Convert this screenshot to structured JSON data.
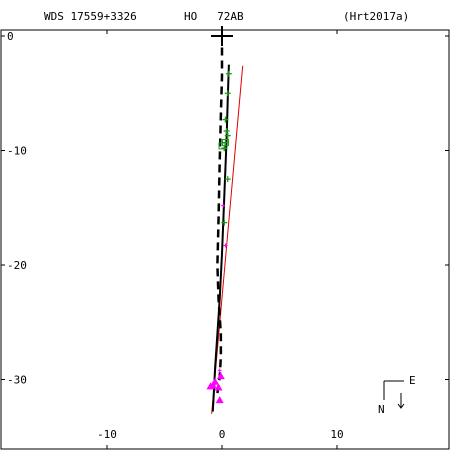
{
  "header": {
    "wds_id": "WDS 17559+3326",
    "discoverer": "HO   72AB",
    "reference": "(Hrt2017a)"
  },
  "compass": {
    "north_label": "N",
    "east_label": "E"
  },
  "chart_data": {
    "type": "scatter",
    "xlim": [
      -19,
      20
    ],
    "ylim": [
      -36,
      1
    ],
    "x_ticks": [
      -10,
      0,
      10
    ],
    "y_ticks": [
      0,
      -10,
      -20,
      -30
    ],
    "x_tick_labels": [
      "-10",
      "0",
      "10"
    ],
    "y_tick_labels": [
      "0",
      "-10",
      "-20",
      "-30"
    ],
    "primary": {
      "x": 0,
      "y": 0
    },
    "green_points": [
      {
        "x": 0.6,
        "y": -3.3
      },
      {
        "x": 0.5,
        "y": -5.0
      },
      {
        "x": 0.3,
        "y": -7.3
      },
      {
        "x": 0.4,
        "y": -8.3
      },
      {
        "x": 0.5,
        "y": -8.7
      },
      {
        "x": 0.3,
        "y": -9.3
      },
      {
        "x": 0.2,
        "y": -9.8
      },
      {
        "x": 0.5,
        "y": -12.5
      },
      {
        "x": 0.2,
        "y": -16.3
      }
    ],
    "green_squares": [
      {
        "x": 0.3,
        "y": -9.3
      },
      {
        "x": 0.0,
        "y": -9.6
      }
    ],
    "magenta_triangles": [
      {
        "x": -0.1,
        "y": -29.7
      },
      {
        "x": -0.6,
        "y": -30.2
      },
      {
        "x": -0.8,
        "y": -30.5
      },
      {
        "x": -0.3,
        "y": -30.7
      },
      {
        "x": -1.0,
        "y": -30.6
      },
      {
        "x": -0.2,
        "y": -31.8
      }
    ],
    "magenta_crosses": [
      {
        "x": 0.1,
        "y": -14.8
      },
      {
        "x": 0.3,
        "y": -18.3
      },
      {
        "x": -0.2,
        "y": -29.2
      }
    ],
    "orbit_solid": [
      {
        "x": 0.6,
        "y": -2.5
      },
      {
        "x": 0.5,
        "y": -5.5
      },
      {
        "x": 0.4,
        "y": -9.0
      },
      {
        "x": 0.2,
        "y": -14.0
      },
      {
        "x": 0.0,
        "y": -19.0
      },
      {
        "x": -0.2,
        "y": -23.0
      },
      {
        "x": -0.4,
        "y": -26.0
      },
      {
        "x": -0.6,
        "y": -29.0
      },
      {
        "x": -0.7,
        "y": -31.0
      },
      {
        "x": -0.8,
        "y": -32.8
      }
    ],
    "orbit_dashed": [
      {
        "x": 0.0,
        "y": -1.0
      },
      {
        "x": 0.0,
        "y": -3.5
      },
      {
        "x": -0.1,
        "y": -7.0
      },
      {
        "x": -0.2,
        "y": -11.0
      },
      {
        "x": -0.3,
        "y": -16.0
      },
      {
        "x": -0.4,
        "y": -20.0
      },
      {
        "x": -0.3,
        "y": -23.0
      },
      {
        "x": -0.1,
        "y": -26.0
      },
      {
        "x": -0.1,
        "y": -28.0
      },
      {
        "x": -0.2,
        "y": -29.8
      },
      {
        "x": -0.4,
        "y": -31.2
      }
    ],
    "red_line": [
      {
        "x": 1.8,
        "y": -2.6
      },
      {
        "x": -0.9,
        "y": -33.0
      }
    ]
  }
}
